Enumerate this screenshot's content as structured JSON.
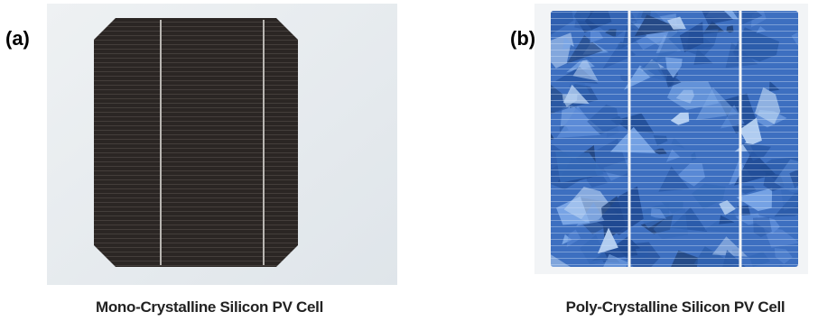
{
  "panels": [
    {
      "label": "(a)",
      "caption": "Mono-Crystalline Silicon PV Cell"
    },
    {
      "label": "(b)",
      "caption": "Poly-Crystalline Silicon PV Cell"
    }
  ]
}
